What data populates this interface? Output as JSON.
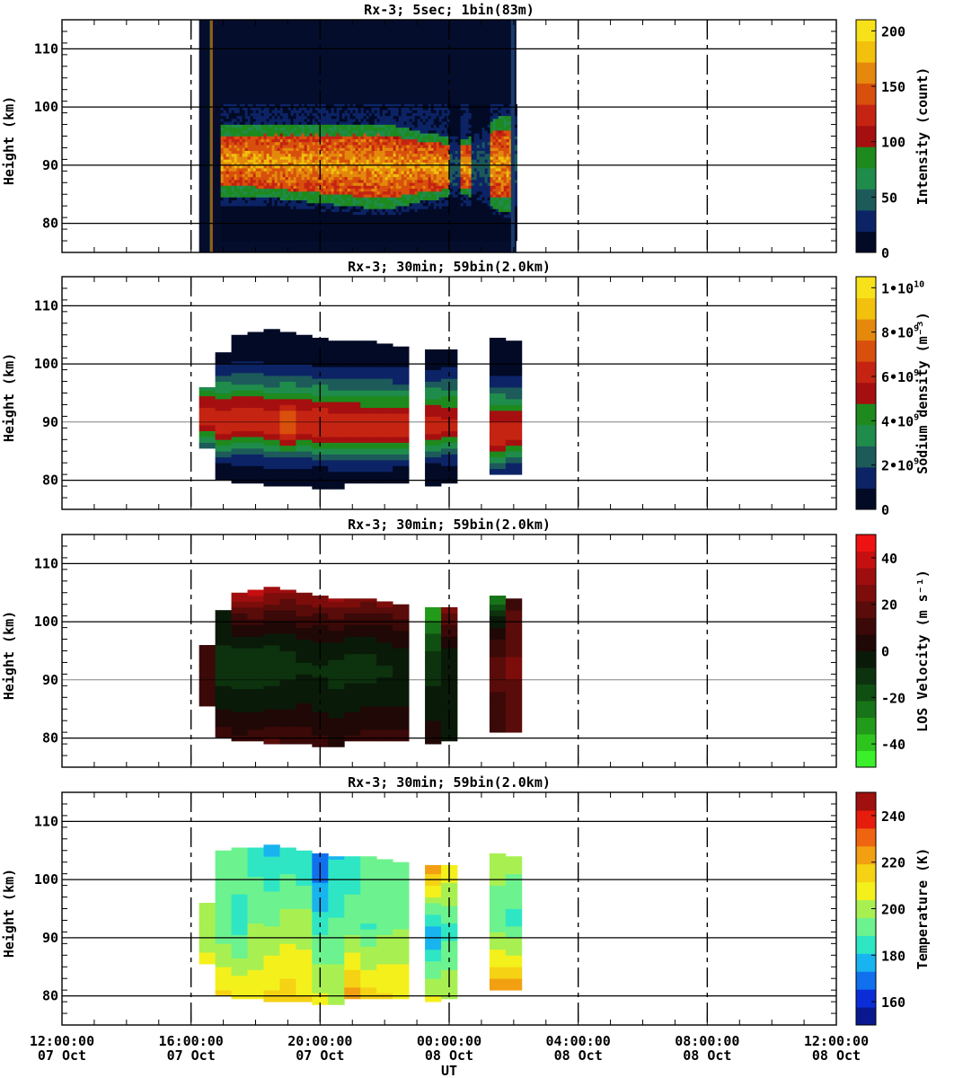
{
  "x_axis": {
    "label": "UT",
    "range": [
      "2022-10-07T12:00:00",
      "2022-10-08T12:00:00"
    ],
    "ticks": [
      {
        "time": "12:00:00",
        "date": "07 Oct",
        "t": "2022-10-07T12:00:00"
      },
      {
        "time": "16:00:00",
        "date": "07 Oct",
        "t": "2022-10-07T16:00:00"
      },
      {
        "time": "20:00:00",
        "date": "07 Oct",
        "t": "2022-10-07T20:00:00"
      },
      {
        "time": "00:00:00",
        "date": "08 Oct",
        "t": "2022-10-08T00:00:00"
      },
      {
        "time": "04:00:00",
        "date": "08 Oct",
        "t": "2022-10-08T04:00:00"
      },
      {
        "time": "08:00:00",
        "date": "08 Oct",
        "t": "2022-10-08T08:00:00"
      },
      {
        "time": "12:00:00",
        "date": "08 Oct",
        "t": "2022-10-08T12:00:00"
      }
    ]
  },
  "chart_data": [
    {
      "type": "heatmap",
      "title": "Rx-3;  5sec; 1bin(83m)",
      "ylabel": "Height (km)",
      "ylim": [
        75,
        115
      ],
      "yticks": [
        80,
        90,
        100,
        110
      ],
      "colorbar": {
        "label": "Intensity (count)",
        "range": [
          0,
          210
        ],
        "ticks": [
          "0",
          "50",
          "100",
          "150",
          "200"
        ],
        "tick_values": [
          0,
          50,
          100,
          150,
          200
        ],
        "colors": [
          "#020a26",
          "#0c2466",
          "#1d5a5a",
          "#1f8c4c",
          "#1e8a1e",
          "#a50f0f",
          "#c52412",
          "#d9500c",
          "#e5890c",
          "#f2c00d",
          "#f7e21a"
        ]
      },
      "data_window": [
        "2022-10-07T16:15:00",
        "2022-10-08T02:05:00"
      ],
      "layer_profile": [
        {
          "t": "2022-10-07T17:00:00",
          "top": 95,
          "bottom": 86
        },
        {
          "t": "2022-10-07T18:00:00",
          "top": 95,
          "bottom": 86
        },
        {
          "t": "2022-10-07T20:00:00",
          "top": 95,
          "bottom": 85
        },
        {
          "t": "2022-10-07T22:00:00",
          "top": 95,
          "bottom": 84
        },
        {
          "t": "2022-10-07T23:00:00",
          "top": 94,
          "bottom": 85
        },
        {
          "t": "2022-10-08T00:30:00",
          "top": 93,
          "bottom": 86
        },
        {
          "t": "2022-10-08T01:30:00",
          "top": 96,
          "bottom": 84
        }
      ],
      "gaps": [
        [
          "2022-10-07T16:35:00",
          "2022-10-07T16:42:00"
        ],
        [
          "2022-10-07T23:58:00",
          "2022-10-08T00:20:00"
        ],
        [
          "2022-10-08T00:40:00",
          "2022-10-08T01:15:00"
        ],
        [
          "2022-10-08T02:00:00",
          "2022-10-08T02:05:00"
        ]
      ]
    },
    {
      "type": "heatmap",
      "title": "Rx-3; 30min; 59bin(2.0km)",
      "ylabel": "Height (km)",
      "ylim": [
        75,
        115
      ],
      "yticks": [
        80,
        90,
        100,
        110
      ],
      "colorbar": {
        "label": "Sodium density (m⁻³)",
        "range": [
          0,
          10500000000.0
        ],
        "ticks": [
          "0",
          "2•109",
          "4•109",
          "6•109",
          "8•109",
          "1•1010"
        ],
        "tick_values": [
          0,
          2000000000.0,
          4000000000.0,
          6000000000.0,
          8000000000.0,
          10000000000.0
        ],
        "colors": [
          "#020a26",
          "#0c2466",
          "#1d5a5a",
          "#1f8c4c",
          "#1e8a1e",
          "#a50f0f",
          "#c52412",
          "#d9500c",
          "#e5890c",
          "#f2c00d",
          "#f7e21a"
        ]
      },
      "columns": [
        {
          "t": "2022-10-07T16:15:00",
          "top": 96,
          "bottom": 85.5,
          "peak": 90.5,
          "val": 6000000000.0
        },
        {
          "t": "2022-10-07T16:45:00",
          "top": 102,
          "bottom": 80,
          "peak": 90,
          "val": 6400000000.0
        },
        {
          "t": "2022-10-07T17:15:00",
          "top": 105,
          "bottom": 79.5,
          "peak": 90,
          "val": 6600000000.0
        },
        {
          "t": "2022-10-07T17:45:00",
          "top": 105.5,
          "bottom": 79.5,
          "peak": 90,
          "val": 6600000000.0
        },
        {
          "t": "2022-10-07T18:15:00",
          "top": 106,
          "bottom": 79,
          "peak": 89.5,
          "val": 6600000000.0
        },
        {
          "t": "2022-10-07T18:45:00",
          "top": 105.5,
          "bottom": 79,
          "peak": 89.5,
          "val": 7200000000.0
        },
        {
          "t": "2022-10-07T19:15:00",
          "top": 105,
          "bottom": 79,
          "peak": 89.5,
          "val": 6600000000.0
        },
        {
          "t": "2022-10-07T19:45:00",
          "top": 104.5,
          "bottom": 78.5,
          "peak": 89.5,
          "val": 6500000000.0
        },
        {
          "t": "2022-10-07T20:15:00",
          "top": 104,
          "bottom": 78.5,
          "peak": 89,
          "val": 6600000000.0
        },
        {
          "t": "2022-10-07T20:45:00",
          "top": 104,
          "bottom": 79.5,
          "peak": 89,
          "val": 6600000000.0
        },
        {
          "t": "2022-10-07T21:15:00",
          "top": 104,
          "bottom": 79.5,
          "peak": 89,
          "val": 6400000000.0
        },
        {
          "t": "2022-10-07T21:45:00",
          "top": 103.5,
          "bottom": 79.5,
          "peak": 89,
          "val": 6400000000.0
        },
        {
          "t": "2022-10-07T22:15:00",
          "top": 103,
          "bottom": 79.5,
          "peak": 89,
          "val": 6200000000.0
        },
        {
          "t": "2022-10-07T23:15:00",
          "top": 102.5,
          "bottom": 79,
          "peak": 89.5,
          "val": 6000000000.0
        },
        {
          "t": "2022-10-07T23:45:00",
          "top": 102.5,
          "bottom": 79.5,
          "peak": 89.5,
          "val": 5800000000.0
        },
        {
          "t": "2022-10-08T01:15:00",
          "top": 104.5,
          "bottom": 81,
          "peak": 88,
          "val": 6400000000.0
        },
        {
          "t": "2022-10-08T01:45:00",
          "top": 104,
          "bottom": 81,
          "peak": 88,
          "val": 6000000000.0
        }
      ]
    },
    {
      "type": "heatmap",
      "title": "Rx-3; 30min; 59bin(2.0km)",
      "ylabel": "Height (km)",
      "ylim": [
        75,
        115
      ],
      "yticks": [
        80,
        90,
        100,
        110
      ],
      "colorbar": {
        "label": "LOS Velocity (m s⁻¹)",
        "range": [
          -50,
          50
        ],
        "ticks": [
          "-40",
          "-20",
          "0",
          "20",
          "40"
        ],
        "tick_values": [
          -40,
          -20,
          0,
          20,
          40
        ],
        "colors": [
          "#3af02a",
          "#2ec41e",
          "#229a1a",
          "#187418",
          "#0f4f12",
          "#0d320e",
          "#0a1a08",
          "#200806",
          "#3a0908",
          "#5a0c0a",
          "#7c0d0b",
          "#9e0e0e",
          "#c60f10",
          "#ef1212"
        ]
      },
      "columns": [
        {
          "t": "2022-10-07T16:15:00",
          "top": 96,
          "bottom": 85.5,
          "v_top": 12,
          "v_mid": 14,
          "v_bot": 14
        },
        {
          "t": "2022-10-07T16:45:00",
          "top": 102,
          "bottom": 80,
          "v_top": 0,
          "v_mid": -10,
          "v_bot": 12
        },
        {
          "t": "2022-10-07T17:15:00",
          "top": 105,
          "bottom": 79.5,
          "v_top": 36,
          "v_mid": -12,
          "v_bot": 10
        },
        {
          "t": "2022-10-07T17:45:00",
          "top": 105.5,
          "bottom": 79.5,
          "v_top": 40,
          "v_mid": -12,
          "v_bot": 12
        },
        {
          "t": "2022-10-07T18:15:00",
          "top": 106,
          "bottom": 79,
          "v_top": 36,
          "v_mid": -12,
          "v_bot": 16
        },
        {
          "t": "2022-10-07T18:45:00",
          "top": 105.5,
          "bottom": 79,
          "v_top": 30,
          "v_mid": -10,
          "v_bot": 14
        },
        {
          "t": "2022-10-07T19:15:00",
          "top": 105,
          "bottom": 79,
          "v_top": 30,
          "v_mid": -8,
          "v_bot": 12
        },
        {
          "t": "2022-10-07T19:45:00",
          "top": 104.5,
          "bottom": 78.5,
          "v_top": 28,
          "v_mid": -8,
          "v_bot": 10
        },
        {
          "t": "2022-10-07T20:15:00",
          "top": 104,
          "bottom": 78.5,
          "v_top": 30,
          "v_mid": -10,
          "v_bot": 8
        },
        {
          "t": "2022-10-07T20:45:00",
          "top": 104,
          "bottom": 79.5,
          "v_top": 28,
          "v_mid": -10,
          "v_bot": 10
        },
        {
          "t": "2022-10-07T21:15:00",
          "top": 104,
          "bottom": 79.5,
          "v_top": 26,
          "v_mid": -10,
          "v_bot": 12
        },
        {
          "t": "2022-10-07T21:45:00",
          "top": 103.5,
          "bottom": 79.5,
          "v_top": 24,
          "v_mid": -8,
          "v_bot": 12
        },
        {
          "t": "2022-10-07T22:15:00",
          "top": 103,
          "bottom": 79.5,
          "v_top": 22,
          "v_mid": -6,
          "v_bot": 10
        },
        {
          "t": "2022-10-07T23:15:00",
          "top": 102.5,
          "bottom": 79,
          "v_top": -36,
          "v_mid": -8,
          "v_bot": 6
        },
        {
          "t": "2022-10-07T23:45:00",
          "top": 102.5,
          "bottom": 79.5,
          "v_top": 26,
          "v_mid": -6,
          "v_bot": -4
        },
        {
          "t": "2022-10-08T01:15:00",
          "top": 104.5,
          "bottom": 81,
          "v_top": -28,
          "v_mid": 16,
          "v_bot": 10
        },
        {
          "t": "2022-10-08T01:45:00",
          "top": 104,
          "bottom": 81,
          "v_top": 12,
          "v_mid": 22,
          "v_bot": 18
        }
      ]
    },
    {
      "type": "heatmap",
      "title": "Rx-3; 30min; 59bin(2.0km)",
      "ylabel": "Height (km)",
      "ylim": [
        75,
        115
      ],
      "yticks": [
        80,
        90,
        100,
        110
      ],
      "colorbar": {
        "label": "Temperature (K)",
        "range": [
          150,
          250
        ],
        "ticks": [
          "160",
          "180",
          "200",
          "220",
          "240"
        ],
        "tick_values": [
          160,
          180,
          200,
          220,
          240
        ],
        "colors": [
          "#0a1890",
          "#0a2dd8",
          "#1070ee",
          "#18b4f0",
          "#2ee6c4",
          "#6cf28e",
          "#a8f052",
          "#f4f01c",
          "#f5d214",
          "#f2a012",
          "#ef6410",
          "#e61c0c",
          "#a0100e"
        ]
      },
      "columns": [
        {
          "t": "2022-10-07T16:15:00",
          "top": 96,
          "bottom": 85.5,
          "t_top": 198,
          "t_mid": 200,
          "t_bot": 206
        },
        {
          "t": "2022-10-07T16:45:00",
          "top": 105,
          "bottom": 80,
          "t_top": 196,
          "t_mid": 190,
          "t_bot": 214
        },
        {
          "t": "2022-10-07T17:15:00",
          "top": 105.5,
          "bottom": 79.5,
          "t_top": 196,
          "t_mid": 184,
          "t_bot": 212
        },
        {
          "t": "2022-10-07T17:45:00",
          "top": 105.5,
          "bottom": 79.5,
          "t_top": 184,
          "t_mid": 196,
          "t_bot": 208
        },
        {
          "t": "2022-10-07T18:15:00",
          "top": 106,
          "bottom": 79,
          "t_top": 178,
          "t_mid": 196,
          "t_bot": 214
        },
        {
          "t": "2022-10-07T18:45:00",
          "top": 105.5,
          "bottom": 79,
          "t_top": 182,
          "t_mid": 200,
          "t_bot": 216
        },
        {
          "t": "2022-10-07T19:15:00",
          "top": 105,
          "bottom": 79,
          "t_top": 180,
          "t_mid": 200,
          "t_bot": 212
        },
        {
          "t": "2022-10-07T19:45:00",
          "top": 104.5,
          "bottom": 78.5,
          "t_top": 166,
          "t_mid": 186,
          "t_bot": 208
        },
        {
          "t": "2022-10-07T20:15:00",
          "top": 104,
          "bottom": 78.5,
          "t_top": 180,
          "t_mid": 190,
          "t_bot": 204
        },
        {
          "t": "2022-10-07T20:45:00",
          "top": 104,
          "bottom": 79.5,
          "t_top": 182,
          "t_mid": 194,
          "t_bot": 224
        },
        {
          "t": "2022-10-07T21:15:00",
          "top": 104,
          "bottom": 79.5,
          "t_top": 196,
          "t_mid": 188,
          "t_bot": 216
        },
        {
          "t": "2022-10-07T21:45:00",
          "top": 103.5,
          "bottom": 79.5,
          "t_top": 192,
          "t_mid": 194,
          "t_bot": 214
        },
        {
          "t": "2022-10-07T22:15:00",
          "top": 103,
          "bottom": 79.5,
          "t_top": 190,
          "t_mid": 196,
          "t_bot": 212
        },
        {
          "t": "2022-10-07T23:15:00",
          "top": 102.5,
          "bottom": 79,
          "t_top": 226,
          "t_mid": 174,
          "t_bot": 208
        },
        {
          "t": "2022-10-07T23:45:00",
          "top": 102.5,
          "bottom": 79.5,
          "t_top": 210,
          "t_mid": 186,
          "t_bot": 204
        },
        {
          "t": "2022-10-08T01:15:00",
          "top": 104.5,
          "bottom": 81,
          "t_top": 202,
          "t_mid": 190,
          "t_bot": 224
        },
        {
          "t": "2022-10-08T01:45:00",
          "top": 104,
          "bottom": 81,
          "t_top": 200,
          "t_mid": 186,
          "t_bot": 226
        }
      ]
    }
  ]
}
